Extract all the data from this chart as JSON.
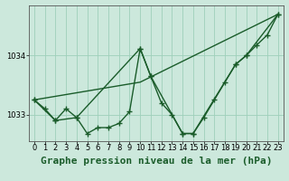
{
  "background_color": "#cce8dc",
  "grid_color": "#9ecfba",
  "line_color": "#1a5c2a",
  "title": "Graphe pression niveau de la mer (hPa)",
  "xlim": [
    -0.5,
    23.5
  ],
  "ylim": [
    1032.55,
    1034.85
  ],
  "yticks": [
    1033,
    1034
  ],
  "xticks": [
    0,
    1,
    2,
    3,
    4,
    5,
    6,
    7,
    8,
    9,
    10,
    11,
    12,
    13,
    14,
    15,
    16,
    17,
    18,
    19,
    20,
    21,
    22,
    23
  ],
  "line1_x": [
    0,
    1,
    2,
    3,
    4,
    5,
    6,
    7,
    8,
    9,
    10,
    11,
    12,
    13,
    14,
    15,
    16,
    17,
    18,
    19,
    20,
    21,
    22,
    23
  ],
  "line1_y": [
    1033.25,
    1033.1,
    1032.9,
    1033.1,
    1032.95,
    1032.68,
    1032.78,
    1032.78,
    1032.85,
    1033.05,
    1034.12,
    1033.65,
    1033.2,
    1033.0,
    1032.68,
    1032.68,
    1032.95,
    1033.25,
    1033.55,
    1033.85,
    1034.0,
    1034.18,
    1034.35,
    1034.7
  ],
  "line2_x": [
    0,
    2,
    4,
    10,
    11,
    14,
    15,
    19,
    20,
    23
  ],
  "line2_y": [
    1033.25,
    1032.9,
    1032.95,
    1034.12,
    1033.65,
    1032.68,
    1032.68,
    1033.85,
    1034.0,
    1034.7
  ],
  "line3_x": [
    0,
    10,
    23
  ],
  "line3_y": [
    1033.25,
    1033.55,
    1034.7
  ],
  "marker": "+",
  "markersize": 4,
  "markeredgewidth": 1.0,
  "linewidth": 1.0,
  "title_fontsize": 8,
  "tick_fontsize": 6
}
